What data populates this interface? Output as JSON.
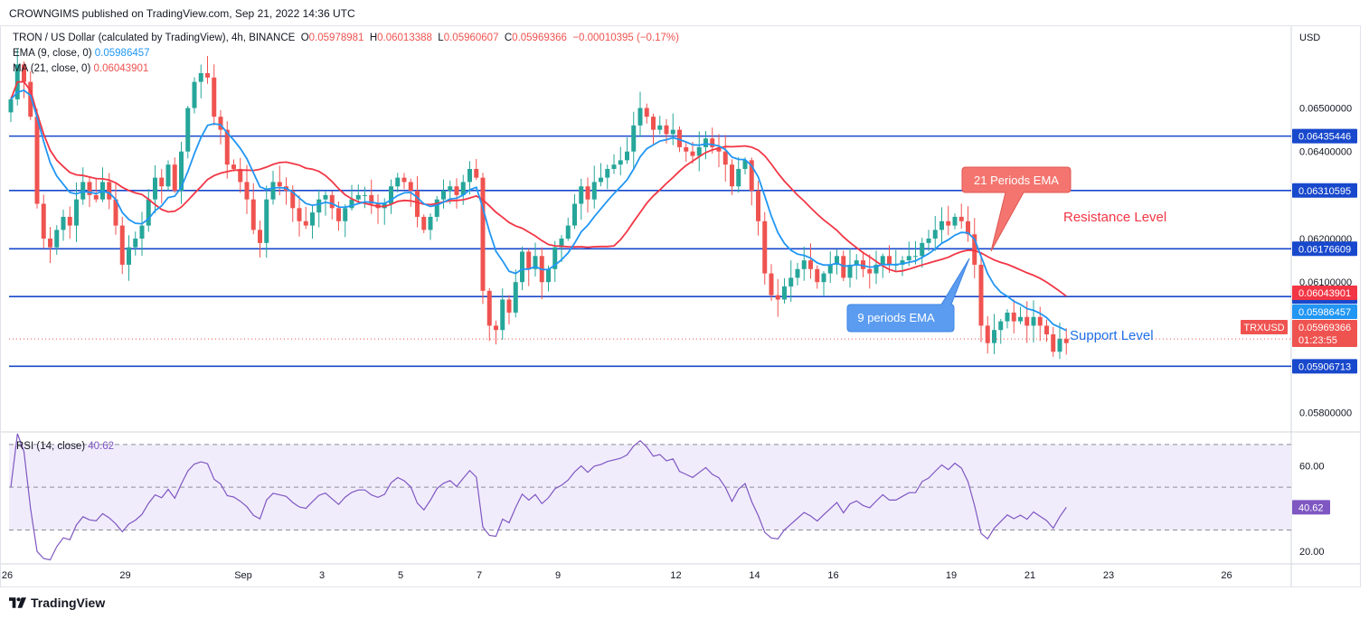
{
  "publisher_line": "CROWNGIMS published on TradingView.com, Sep 21, 2022 14:36 UTC",
  "legend": {
    "symbol": "TRON / US Dollar (calculated by TradingView), 4h, BINANCE",
    "O_label": "O",
    "O": "0.05978981",
    "H_label": "H",
    "H": "0.06013388",
    "L_label": "L",
    "L": "0.05960607",
    "C_label": "C",
    "C": "0.05969366",
    "change": "−0.00010395 (−0.17%)",
    "ema_label": "EMA (9, close, 0)",
    "ema_value": "0.05986457",
    "ma_label": "MA (21, close, 0)",
    "ma_value": "0.06043901",
    "rsi_label": "RSI (14, close)",
    "rsi_value": "40.62"
  },
  "brand": "TradingView",
  "colors": {
    "up": "#26a69a",
    "down": "#ef5350",
    "ema": "#2196f3",
    "ma": "#f23645",
    "hline": "#1848cc",
    "rsi": "#7e57c2",
    "rsi_band": "#f1ecfb"
  },
  "chart_data": {
    "type": "candlestick",
    "timeframe": "4h",
    "currency_label": "USD",
    "ylim": [
      0.0576,
      0.0669
    ],
    "x_tick_labels": [
      {
        "label": "26",
        "index": 0
      },
      {
        "label": "29",
        "index": 18
      },
      {
        "label": "Sep",
        "index": 36
      },
      {
        "label": "3",
        "index": 48
      },
      {
        "label": "5",
        "index": 60
      },
      {
        "label": "7",
        "index": 72
      },
      {
        "label": "9",
        "index": 84
      },
      {
        "label": "12",
        "index": 102
      },
      {
        "label": "14",
        "index": 114
      },
      {
        "label": "16",
        "index": 126
      },
      {
        "label": "19",
        "index": 144
      },
      {
        "label": "21",
        "index": 156
      },
      {
        "label": "23",
        "index": 168
      },
      {
        "label": "26",
        "index": 186
      }
    ],
    "y_axis_labels": [
      "0.06500000",
      "0.06400000",
      "0.06200000",
      "0.06100000",
      "0.05800000"
    ],
    "y_axis_values": [
      0.065,
      0.064,
      0.062,
      0.061,
      0.058
    ],
    "horizontal_levels": [
      {
        "value": 0.06435446,
        "label": "0.06435446"
      },
      {
        "value": 0.06310595,
        "label": "0.06310595"
      },
      {
        "value": 0.06176609,
        "label": "0.06176609"
      },
      {
        "value": 0.06066746,
        "label": "0.06066746"
      },
      {
        "value": 0.05906713,
        "label": "0.05906713"
      }
    ],
    "price_badges": [
      {
        "value": 0.06043901,
        "label": "0.06043901",
        "color": "#f23645"
      },
      {
        "value": 0.05986457,
        "label": "0.05986457",
        "color": "#2196f3"
      },
      {
        "value": 0.05969366,
        "label": "0.05969366",
        "time": "01:23:55",
        "color": "#ef5350",
        "symbol": "TRXUSD"
      }
    ],
    "last_price": 0.05969366,
    "annotations": [
      {
        "text": "21 Periods EMA",
        "kind": "callout-red"
      },
      {
        "text": "Resistance Level",
        "kind": "text-red"
      },
      {
        "text": "9 periods EMA",
        "kind": "callout-blue"
      },
      {
        "text": "Support Level",
        "kind": "text-blue"
      }
    ],
    "rsi": {
      "ylim": [
        15,
        75
      ],
      "upper_band": 70,
      "mid_band": 50,
      "lower_band": 30,
      "y_axis_labels": [
        "60.00",
        "20.00"
      ],
      "y_axis_values": [
        60,
        20
      ],
      "current": 40.62,
      "current_label": "40.62"
    },
    "closes": [
      0.0652,
      0.066,
      0.0656,
      0.0648,
      0.0628,
      0.062,
      0.0618,
      0.0622,
      0.0625,
      0.0623,
      0.0629,
      0.0633,
      0.063,
      0.0629,
      0.0633,
      0.0629,
      0.0623,
      0.0614,
      0.0618,
      0.062,
      0.0623,
      0.0629,
      0.0634,
      0.0632,
      0.0637,
      0.0631,
      0.064,
      0.065,
      0.0656,
      0.0658,
      0.0657,
      0.0648,
      0.0645,
      0.0637,
      0.0636,
      0.0633,
      0.0629,
      0.0622,
      0.0619,
      0.0629,
      0.0633,
      0.0632,
      0.0631,
      0.0627,
      0.0624,
      0.0623,
      0.0626,
      0.0629,
      0.063,
      0.0627,
      0.0624,
      0.0627,
      0.0629,
      0.063,
      0.063,
      0.0628,
      0.0627,
      0.0628,
      0.0632,
      0.0634,
      0.0633,
      0.0631,
      0.0625,
      0.0622,
      0.0625,
      0.0629,
      0.0631,
      0.0632,
      0.063,
      0.0633,
      0.0636,
      0.0634,
      0.0608,
      0.06,
      0.0599,
      0.0606,
      0.0603,
      0.061,
      0.0617,
      0.0613,
      0.0616,
      0.061,
      0.0613,
      0.0618,
      0.062,
      0.0623,
      0.0628,
      0.0632,
      0.0629,
      0.0633,
      0.0634,
      0.0636,
      0.0637,
      0.0638,
      0.064,
      0.0646,
      0.065,
      0.0648,
      0.0645,
      0.0646,
      0.0644,
      0.0645,
      0.0641,
      0.064,
      0.0639,
      0.0641,
      0.0643,
      0.0641,
      0.064,
      0.0637,
      0.0632,
      0.0636,
      0.0638,
      0.0631,
      0.0624,
      0.0612,
      0.0607,
      0.0606,
      0.0609,
      0.0611,
      0.0613,
      0.0615,
      0.0613,
      0.061,
      0.0612,
      0.0614,
      0.0616,
      0.0611,
      0.0614,
      0.0615,
      0.0613,
      0.0612,
      0.0614,
      0.0616,
      0.0614,
      0.0614,
      0.0615,
      0.0616,
      0.0616,
      0.0619,
      0.062,
      0.0622,
      0.0624,
      0.0623,
      0.0625,
      0.0624,
      0.0621,
      0.0614,
      0.06,
      0.0596,
      0.0599,
      0.0601,
      0.0603,
      0.0601,
      0.0602,
      0.06,
      0.0602,
      0.06,
      0.0598,
      0.0594,
      0.0597,
      0.0596
    ]
  }
}
